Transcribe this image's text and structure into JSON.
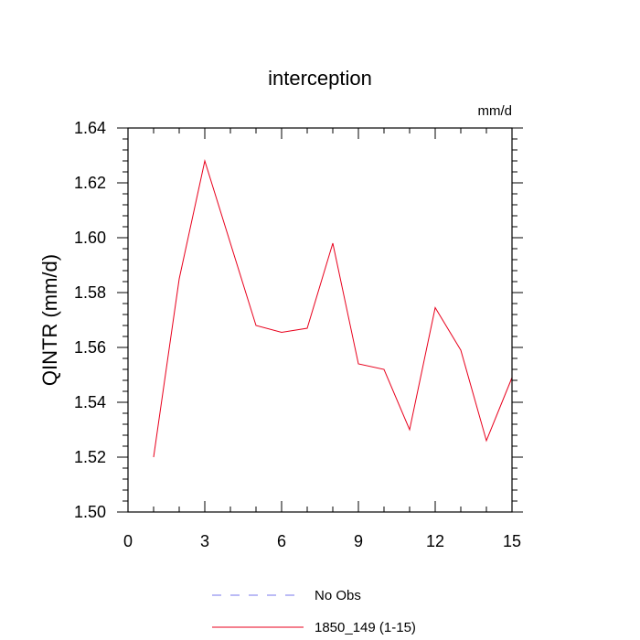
{
  "chart_data": {
    "type": "line",
    "title": "interception",
    "units_label": "mm/d",
    "ylabel": "QINTR  (mm/d)",
    "xlabel": "",
    "xlim": [
      0,
      15
    ],
    "ylim": [
      1.5,
      1.64
    ],
    "xticks": [
      0,
      3,
      6,
      9,
      12,
      15
    ],
    "xtick_labels": [
      "0",
      "3",
      "6",
      "9",
      "12",
      "15"
    ],
    "yticks": [
      1.5,
      1.52,
      1.54,
      1.56,
      1.58,
      1.6,
      1.62,
      1.64
    ],
    "ytick_labels": [
      "1.50",
      "1.52",
      "1.54",
      "1.56",
      "1.58",
      "1.60",
      "1.62",
      "1.64"
    ],
    "grid": false,
    "legend_position": "bottom-center",
    "series": [
      {
        "name": "1850_149 (1-15)",
        "color": "#e8001c",
        "style": "solid",
        "x": [
          1,
          2,
          3,
          4,
          5,
          6,
          7,
          8,
          9,
          10,
          11,
          12,
          13,
          14,
          15
        ],
        "y": [
          1.52,
          1.585,
          1.628,
          1.598,
          1.568,
          1.5655,
          1.567,
          1.598,
          1.554,
          1.552,
          1.53,
          1.5745,
          1.559,
          1.526,
          1.549
        ]
      }
    ],
    "legend": [
      {
        "label": "No Obs",
        "color": "#7777ee",
        "style": "dashed"
      },
      {
        "label": "1850_149 (1-15)",
        "color": "#e8001c",
        "style": "solid"
      }
    ]
  }
}
